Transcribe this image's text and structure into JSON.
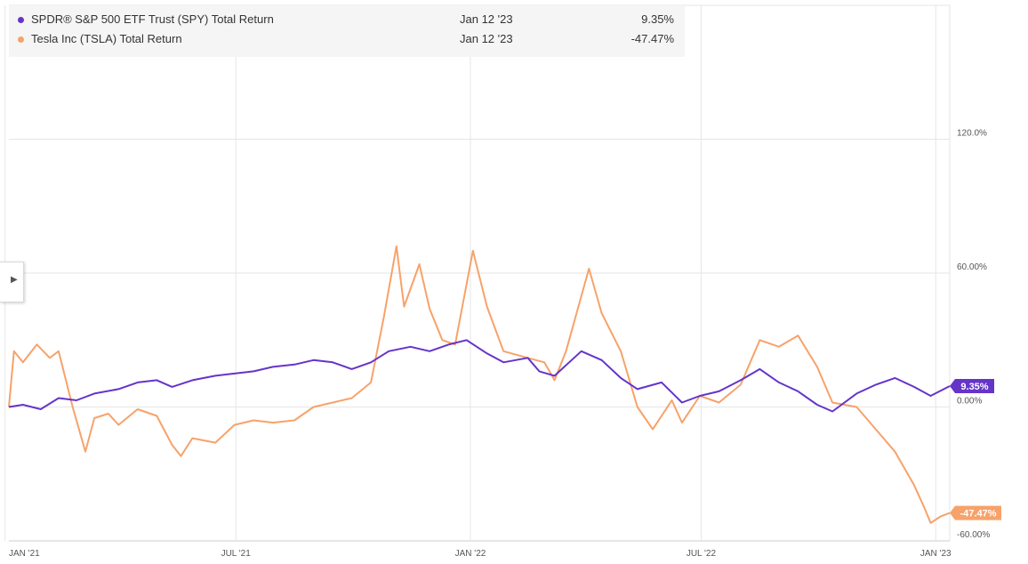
{
  "legend": [
    {
      "name": "SPDR® S&P 500 ETF Trust (SPY) Total Return",
      "date": "Jan 12 '23",
      "value": "9.35%",
      "color": "#6534c9"
    },
    {
      "name": "Tesla Inc (TSLA) Total Return",
      "date": "Jan 12 '23",
      "value": "-47.47%",
      "color": "#f7a26a"
    }
  ],
  "side_tab_icon": "chevron-right-icon",
  "chart_data": {
    "type": "line",
    "x_ticks": [
      "JAN '21",
      "JUL '21",
      "JAN '22",
      "JUL '22",
      "JAN '23"
    ],
    "x_tick_dates": [
      "2021-01-01",
      "2021-07-01",
      "2022-01-01",
      "2022-07-01",
      "2023-01-01"
    ],
    "x_range": [
      "2021-01-04",
      "2023-01-12"
    ],
    "y_ticks": [
      {
        "value": 120,
        "label": "120.0%"
      },
      {
        "value": 60,
        "label": "60.00%"
      },
      {
        "value": 0,
        "label": "0.00%"
      },
      {
        "value": -60,
        "label": "-60.00%"
      }
    ],
    "ylim": [
      -60,
      180
    ],
    "grid": true,
    "series": [
      {
        "name": "SPDR® S&P 500 ETF Trust (SPY) Total Return",
        "color": "#6534c9",
        "end_label": "9.35%",
        "points": [
          [
            "2021-01-04",
            0
          ],
          [
            "2021-01-15",
            1
          ],
          [
            "2021-01-29",
            -1
          ],
          [
            "2021-02-12",
            4
          ],
          [
            "2021-02-26",
            3
          ],
          [
            "2021-03-12",
            6
          ],
          [
            "2021-03-31",
            8
          ],
          [
            "2021-04-15",
            11
          ],
          [
            "2021-04-30",
            12
          ],
          [
            "2021-05-12",
            9
          ],
          [
            "2021-05-28",
            12
          ],
          [
            "2021-06-15",
            14
          ],
          [
            "2021-06-30",
            15
          ],
          [
            "2021-07-15",
            16
          ],
          [
            "2021-07-30",
            18
          ],
          [
            "2021-08-16",
            19
          ],
          [
            "2021-08-31",
            21
          ],
          [
            "2021-09-15",
            20
          ],
          [
            "2021-09-30",
            17
          ],
          [
            "2021-10-15",
            20
          ],
          [
            "2021-10-29",
            25
          ],
          [
            "2021-11-15",
            27
          ],
          [
            "2021-11-30",
            25
          ],
          [
            "2021-12-15",
            28
          ],
          [
            "2021-12-29",
            30
          ],
          [
            "2022-01-14",
            24
          ],
          [
            "2022-01-27",
            20
          ],
          [
            "2022-02-15",
            22
          ],
          [
            "2022-02-24",
            16
          ],
          [
            "2022-03-08",
            14
          ],
          [
            "2022-03-29",
            25
          ],
          [
            "2022-04-14",
            21
          ],
          [
            "2022-04-29",
            13
          ],
          [
            "2022-05-12",
            8
          ],
          [
            "2022-05-31",
            11
          ],
          [
            "2022-06-16",
            2
          ],
          [
            "2022-06-30",
            5
          ],
          [
            "2022-07-15",
            7
          ],
          [
            "2022-08-01",
            12
          ],
          [
            "2022-08-16",
            17
          ],
          [
            "2022-08-31",
            11
          ],
          [
            "2022-09-15",
            7
          ],
          [
            "2022-09-30",
            1
          ],
          [
            "2022-10-12",
            -2
          ],
          [
            "2022-10-31",
            6
          ],
          [
            "2022-11-15",
            10
          ],
          [
            "2022-11-30",
            13
          ],
          [
            "2022-12-15",
            9
          ],
          [
            "2022-12-28",
            5
          ],
          [
            "2023-01-12",
            9.35
          ]
        ]
      },
      {
        "name": "Tesla Inc (TSLA) Total Return",
        "color": "#f7a26a",
        "end_label": "-47.47%",
        "points": [
          [
            "2021-01-04",
            0
          ],
          [
            "2021-01-08",
            25
          ],
          [
            "2021-01-15",
            20
          ],
          [
            "2021-01-26",
            28
          ],
          [
            "2021-02-05",
            22
          ],
          [
            "2021-02-12",
            25
          ],
          [
            "2021-02-23",
            0
          ],
          [
            "2021-03-05",
            -20
          ],
          [
            "2021-03-12",
            -5
          ],
          [
            "2021-03-23",
            -3
          ],
          [
            "2021-03-31",
            -8
          ],
          [
            "2021-04-15",
            -1
          ],
          [
            "2021-04-30",
            -4
          ],
          [
            "2021-05-12",
            -17
          ],
          [
            "2021-05-19",
            -22
          ],
          [
            "2021-05-28",
            -14
          ],
          [
            "2021-06-15",
            -16
          ],
          [
            "2021-06-30",
            -8
          ],
          [
            "2021-07-15",
            -6
          ],
          [
            "2021-07-30",
            -7
          ],
          [
            "2021-08-16",
            -6
          ],
          [
            "2021-08-31",
            0
          ],
          [
            "2021-09-15",
            2
          ],
          [
            "2021-09-30",
            4
          ],
          [
            "2021-10-15",
            11
          ],
          [
            "2021-10-25",
            40
          ],
          [
            "2021-11-04",
            72
          ],
          [
            "2021-11-10",
            45
          ],
          [
            "2021-11-22",
            64
          ],
          [
            "2021-11-30",
            44
          ],
          [
            "2021-12-10",
            30
          ],
          [
            "2021-12-20",
            28
          ],
          [
            "2022-01-03",
            70
          ],
          [
            "2022-01-14",
            45
          ],
          [
            "2022-01-27",
            25
          ],
          [
            "2022-02-15",
            22
          ],
          [
            "2022-02-28",
            20
          ],
          [
            "2022-03-08",
            12
          ],
          [
            "2022-03-17",
            25
          ],
          [
            "2022-04-04",
            62
          ],
          [
            "2022-04-14",
            42
          ],
          [
            "2022-04-29",
            25
          ],
          [
            "2022-05-12",
            0
          ],
          [
            "2022-05-24",
            -10
          ],
          [
            "2022-06-08",
            3
          ],
          [
            "2022-06-16",
            -7
          ],
          [
            "2022-06-30",
            5
          ],
          [
            "2022-07-15",
            2
          ],
          [
            "2022-08-01",
            10
          ],
          [
            "2022-08-16",
            30
          ],
          [
            "2022-08-31",
            27
          ],
          [
            "2022-09-15",
            32
          ],
          [
            "2022-09-30",
            18
          ],
          [
            "2022-10-12",
            2
          ],
          [
            "2022-10-31",
            0
          ],
          [
            "2022-11-15",
            -10
          ],
          [
            "2022-11-30",
            -20
          ],
          [
            "2022-12-15",
            -35
          ],
          [
            "2022-12-23",
            -45
          ],
          [
            "2022-12-28",
            -52
          ],
          [
            "2023-01-05",
            -49
          ],
          [
            "2023-01-12",
            -47.47
          ]
        ]
      }
    ]
  }
}
